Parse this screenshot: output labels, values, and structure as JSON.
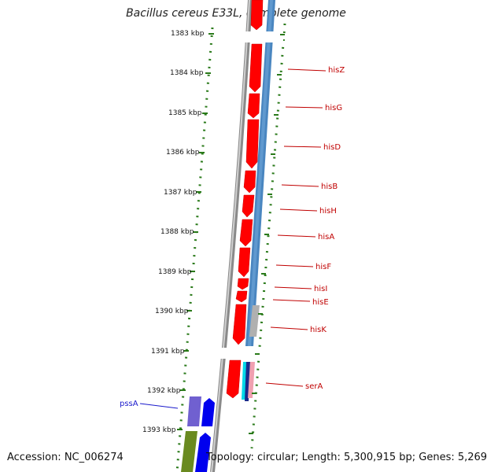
{
  "title": "Bacillus cereus E33L, complete genome",
  "accession": "Accession: NC_006274",
  "summary": "Topology: circular; Length: 5,300,915 bp; Genes: 5,269",
  "ticks": [
    "1383 kbp",
    "1384 kbp",
    "1385 kbp",
    "1386 kbp",
    "1387 kbp",
    "1388 kbp",
    "1389 kbp",
    "1390 kbp",
    "1391 kbp",
    "1392 kbp",
    "1393 kbp"
  ],
  "genes_right": [
    "hisZ",
    "hisG",
    "hisD",
    "hisB",
    "hisH",
    "hisA",
    "hisF",
    "hisI",
    "hisE",
    "hisK",
    "serA"
  ],
  "genes_left": [
    "pssA"
  ],
  "colors": {
    "cds": "#ff0000",
    "cds_dark": "#c00000",
    "blue": "#4a86c0",
    "grey_backbone": "#888888",
    "tick": "#2a7a1a",
    "label_red": "#c00000",
    "label_blue": "#1a1acc"
  }
}
